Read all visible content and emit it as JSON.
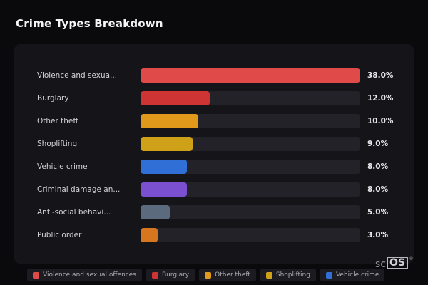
{
  "page": {
    "title": "Crime Types Breakdown"
  },
  "chart_data": {
    "type": "bar",
    "orientation": "horizontal",
    "title": "Crime Types Breakdown",
    "xlabel": "",
    "ylabel": "",
    "max_value": 38,
    "value_unit": "%",
    "grid": false,
    "categories": [
      "Violence and sexua...",
      "Burglary",
      "Other theft",
      "Shoplifting",
      "Vehicle crime",
      "Criminal damage an...",
      "Anti-social behavi...",
      "Public order"
    ],
    "values": [
      38.0,
      12.0,
      10.0,
      9.0,
      8.0,
      8.0,
      5.0,
      3.0
    ],
    "bars": [
      {
        "label": "Violence and sexua...",
        "value": 38.0,
        "value_label": "38.0%",
        "color": "#e04a49"
      },
      {
        "label": "Burglary",
        "value": 12.0,
        "value_label": "12.0%",
        "color": "#cf3434"
      },
      {
        "label": "Other theft",
        "value": 10.0,
        "value_label": "10.0%",
        "color": "#e0991a"
      },
      {
        "label": "Shoplifting",
        "value": 9.0,
        "value_label": "9.0%",
        "color": "#cfa118"
      },
      {
        "label": "Vehicle crime",
        "value": 8.0,
        "value_label": "8.0%",
        "color": "#2f6fd6"
      },
      {
        "label": "Criminal damage an...",
        "value": 8.0,
        "value_label": "8.0%",
        "color": "#7a4fd0"
      },
      {
        "label": "Anti-social behavi...",
        "value": 5.0,
        "value_label": "5.0%",
        "color": "#5b6a7d"
      },
      {
        "label": "Public order",
        "value": 3.0,
        "value_label": "3.0%",
        "color": "#d6761e"
      }
    ]
  },
  "legend": {
    "items": [
      {
        "label": "Violence and sexual offences",
        "color": "#e04a49"
      },
      {
        "label": "Burglary",
        "color": "#cf3434"
      },
      {
        "label": "Other theft",
        "color": "#e0991a"
      },
      {
        "label": "Shoplifting",
        "color": "#cfa118"
      },
      {
        "label": "Vehicle crime",
        "color": "#2f6fd6"
      }
    ]
  },
  "branding": {
    "logo_prefix": "sc",
    "logo_box": "OS",
    "registered": "®"
  }
}
